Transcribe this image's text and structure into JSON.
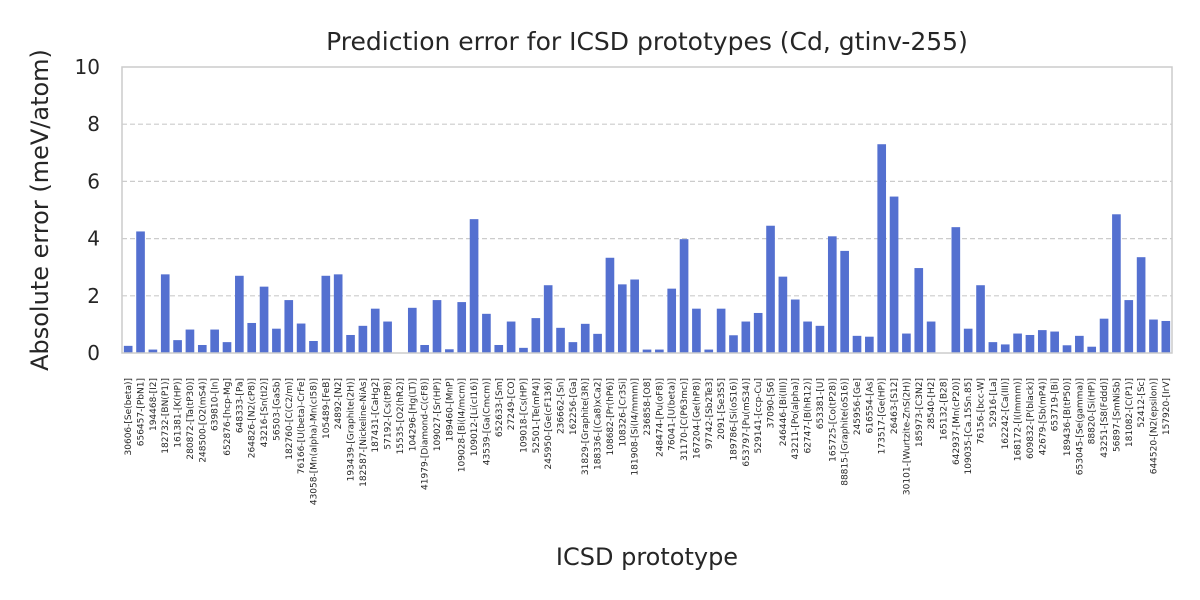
{
  "chart_data": {
    "type": "bar",
    "title": "Prediction error for ICSD prototypes (Cd, gtinv-255)",
    "xlabel": "ICSD prototype",
    "ylabel": "Absolute error (meV/atom)",
    "ylim": [
      0,
      10
    ],
    "yticks": [
      0,
      2,
      4,
      6,
      8,
      10
    ],
    "grid": "horizontal-dashed",
    "bar_color": "#5470d0",
    "categories": [
      "30606-[Se(beta)]",
      "656457-[PbN1]",
      "194468-[I2]",
      "182732-[BN(P1)]",
      "161381-[K(HP)]",
      "280872-[Ta(tP30)]",
      "248500-[O2(mS4)]",
      "639810-[In]",
      "652876-[hcp-Mg]",
      "648333-[Pa]",
      "264826-[N2(cP8)]",
      "43216-[Sn(tI2)]",
      "56503-[GaSb]",
      "182760-[C(C2/m)]",
      "76166-[U(beta)-CrFe]",
      "43058-[Mn(alpha)-Mn(cI58)]",
      "105489-[FeB]",
      "24892-[N2]",
      "193439-[Graphite(2H)]",
      "182587-[Nickeline-NiAs]",
      "187431-[CaHg2]",
      "57192-[Cs(tP8)]",
      "15535-[O2(hR2)]",
      "104296-[Hg(LT)]",
      "41979-[Diamond-C(cF8)]",
      "109027-[Sr(HP)]",
      "189460-[MnP]",
      "109028-[Bi(I4/mcm)]",
      "109012-[Li(cI16)]",
      "43539-[Ga(Cmcm)]",
      "652633-[Sm]",
      "27249-[CO]",
      "109018-[Cs(HP)]",
      "52501-[Te(mP4)]",
      "245950-[Ge(cF136)]",
      "236662-[Sn]",
      "162256-[Ga]",
      "31829-[Graphite(3R)]",
      "188336-[(Ca8)xCa2]",
      "108682-[Pr(hP6)]",
      "108326-[Cr3Si]",
      "181908-[Si(I4/mmm)]",
      "236858-[O8]",
      "248474-[Pu(oF8)]",
      "76041-[U(beta)]",
      "31170-[C(P63mc)]",
      "167204-[Ge(hP8)]",
      "97742-[Sb2Te3]",
      "2091-[Se3S5]",
      "189786-[Si(oS16)]",
      "653797-[Pu(mS34)]",
      "529141-[ccp-Cu]",
      "37090-[S6]",
      "246446-[Bi(III)]",
      "43211-[Po(alpha)]",
      "62747-[B(hR12)]",
      "653381-[U]",
      "165725-[Co(tP28)]",
      "88815-[Graphite(oS16)]",
      "245956-[Ge]",
      "616554-[As]",
      "173517-[Ge(HP)]",
      "26463-[S12]",
      "30101-[Wurtzite-ZnS(2H)]",
      "185973-[C3N2]",
      "28540-[H2]",
      "165132-[B28]",
      "642937-[Mn(cP20)]",
      "109035-[Ca.15Sn.85]",
      "76156-[bcc-W]",
      "52916-[La]",
      "162242-[Ca(III)]",
      "168172-[I(Immm)]",
      "609832-[P(black)]",
      "42679-[Sb(mP4)]",
      "653719-[Bi]",
      "189436-[B(tP50)]",
      "653045-[Se(gamma)]",
      "88820-[Si(HP)]",
      "43251-[S8(Fddd)]",
      "56897-[SmNiSb]",
      "181082-[C(P1)]",
      "52412-[Sc]",
      "644520-[N2(epsilon)]",
      "157920-[IrV]"
    ],
    "values": [
      0.25,
      4.25,
      0.12,
      2.75,
      0.45,
      0.82,
      0.28,
      0.82,
      0.38,
      2.7,
      1.05,
      2.32,
      0.85,
      1.85,
      1.03,
      0.42,
      2.7,
      2.75,
      0.63,
      0.95,
      1.55,
      1.1,
      0.0,
      1.58,
      0.28,
      1.85,
      0.13,
      1.78,
      4.68,
      1.37,
      0.28,
      1.1,
      0.18,
      1.22,
      2.37,
      0.88,
      0.38,
      1.02,
      0.67,
      3.33,
      2.4,
      2.57,
      0.12,
      0.12,
      2.25,
      3.98,
      1.55,
      0.12,
      1.55,
      0.62,
      1.1,
      1.4,
      4.45,
      2.67,
      1.87,
      1.1,
      0.95,
      4.08,
      3.57,
      0.6,
      0.57,
      7.3,
      5.47,
      0.68,
      2.97,
      1.1,
      0.0,
      4.4,
      0.85,
      2.37,
      0.38,
      0.3,
      0.68,
      0.63,
      0.8,
      0.75,
      0.27,
      0.6,
      0.22,
      1.2,
      4.85,
      1.85,
      3.35,
      1.17,
      1.12
    ]
  }
}
